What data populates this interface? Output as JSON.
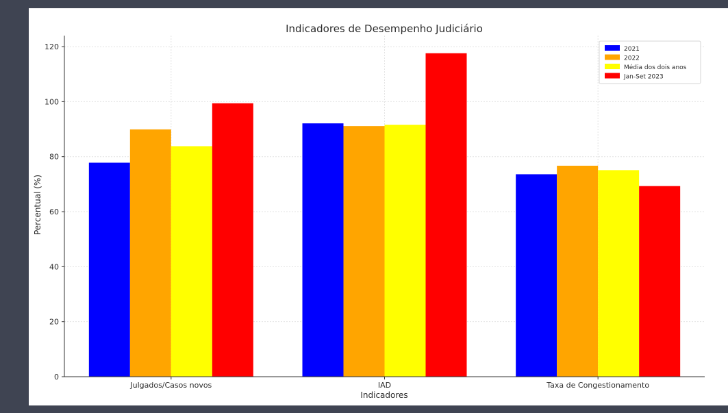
{
  "chart_data": {
    "type": "bar",
    "title": "Indicadores de Desempenho Judiciário",
    "xlabel": "Indicadores",
    "ylabel": "Percentual (%)",
    "categories": [
      "Julgados/Casos novos",
      "IAD",
      "Taxa de Congestionamento"
    ],
    "series": [
      {
        "name": "2021",
        "color": "#0000ff",
        "values": [
          77.8,
          92.1,
          73.6
        ]
      },
      {
        "name": "2022",
        "color": "#ffa500",
        "values": [
          89.9,
          91.1,
          76.7
        ]
      },
      {
        "name": "Média dos dois anos",
        "color": "#ffff00",
        "values": [
          83.8,
          91.6,
          75.1
        ]
      },
      {
        "name": "Jan-Set 2023",
        "color": "#ff0000",
        "values": [
          99.4,
          117.6,
          69.3
        ]
      }
    ],
    "ylim": [
      0,
      124
    ],
    "yticks": [
      0,
      20,
      40,
      60,
      80,
      100,
      120
    ],
    "grid": true,
    "legend_position": "top-right"
  }
}
